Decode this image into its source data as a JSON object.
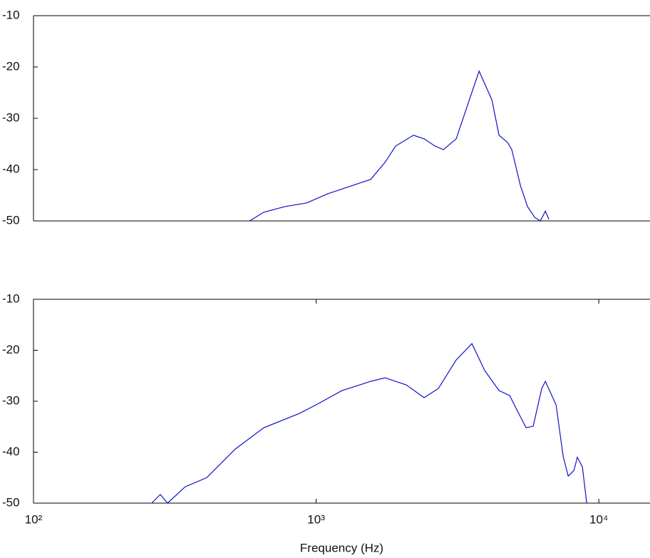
{
  "chart_data": [
    {
      "type": "line",
      "log_x": true,
      "xlim": [
        100,
        15000
      ],
      "ylim": [
        -50,
        -10
      ],
      "yticks": [
        -10,
        -20,
        -30,
        -40,
        -50
      ],
      "x": [
        581,
        653,
        777,
        925,
        1101,
        1310,
        1560,
        1752,
        1911,
        2210,
        2410,
        2630,
        2820,
        3130,
        3415,
        3771,
        4185,
        4436,
        4754,
        4922,
        5279,
        5595,
        5930,
        6210,
        6470,
        6660
      ],
      "series": [
        {
          "color": "#1010c8",
          "values": [
            -50,
            -48.3,
            -47.2,
            -46.5,
            -44.7,
            -43.3,
            -41.9,
            -38.6,
            -35.4,
            -33.3,
            -34.0,
            -35.4,
            -36.1,
            -34.0,
            -27.8,
            -20.8,
            -26.4,
            -33.3,
            -34.7,
            -36.1,
            -43.1,
            -47.2,
            -49.3,
            -50,
            -48.1,
            -49.7
          ]
        }
      ]
    },
    {
      "type": "line",
      "log_x": true,
      "xlim": [
        100,
        15000
      ],
      "ylim": [
        -50,
        -10
      ],
      "yticks": [
        -10,
        -20,
        -30,
        -40,
        -50
      ],
      "xticks": [
        {
          "value": 100,
          "label": "10²"
        },
        {
          "value": 1000,
          "label": "10³"
        },
        {
          "value": 10000,
          "label": "10⁴"
        }
      ],
      "xlabel": "Frequency (Hz)",
      "x": [
        262,
        281,
        298,
        344,
        410,
        517,
        653,
        872,
        1000,
        1236,
        1560,
        1752,
        2085,
        2410,
        2707,
        3130,
        3557,
        3950,
        4436,
        4839,
        5130,
        5530,
        5860,
        6283,
        6470,
        7060,
        7480,
        7794,
        8166,
        8395,
        8750,
        9060
      ],
      "series": [
        {
          "color": "#1010c8",
          "values": [
            -50,
            -48.3,
            -50,
            -46.8,
            -45,
            -39.4,
            -35.2,
            -32.4,
            -30.7,
            -27.9,
            -26.1,
            -25.4,
            -26.8,
            -29.3,
            -27.5,
            -21.9,
            -18.7,
            -24,
            -27.9,
            -28.9,
            -31.7,
            -35.2,
            -34.9,
            -27.5,
            -26.1,
            -30.7,
            -40.8,
            -44.7,
            -43.6,
            -41,
            -42.9,
            -50
          ]
        }
      ]
    }
  ]
}
